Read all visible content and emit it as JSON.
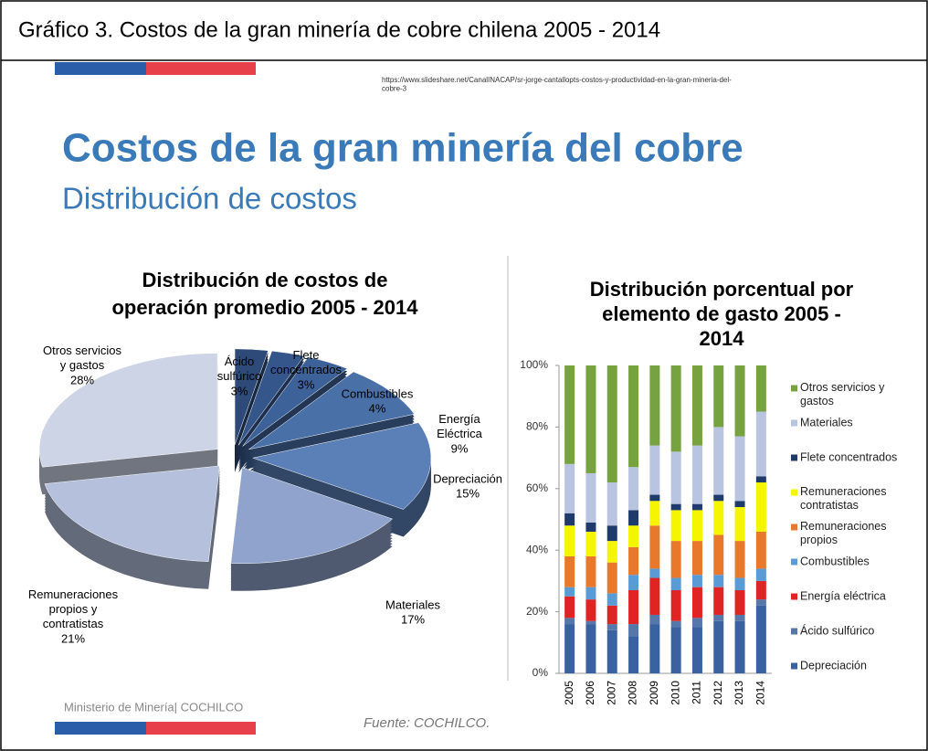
{
  "caption": "Gráfico 3. Costos de la gran minería de cobre chilena 2005 - 2014",
  "slide": {
    "url": "https://www.slideshare.net/CanalINACAP/sr-jorge-cantallopts-costos-y-productividad-en-la-gran-mineria-del-\ncobre-3",
    "title": "Costos de la gran minería del cobre",
    "subtitle": "Distribución de costos",
    "footer": "Ministerio de Minería| COCHILCO",
    "source": "Fuente: COCHILCO."
  },
  "chart_data": [
    {
      "type": "pie",
      "title": "Distribución de costos de\noperación promedio 2005 - 2014",
      "labels": [
        "Ácido\nsulfúrico",
        "Flete\nconcentrados",
        "Combustibles",
        "Energía\nEléctrica",
        "Depreciación",
        "Materiales",
        "Remuneraciones\npropios y\ncontratistas",
        "Otros servicios\ny gastos"
      ],
      "values": [
        3,
        3,
        4,
        9,
        15,
        17,
        21,
        28
      ],
      "value_labels": [
        "3%",
        "3%",
        "4%",
        "9%",
        "15%",
        "17%",
        "21%",
        "28%"
      ],
      "colors": [
        "#2d4a78",
        "#34568a",
        "#3d6299",
        "#4a70a8",
        "#5b80b8",
        "#8fa3cc",
        "#b4c0dc",
        "#cdd4e6"
      ]
    },
    {
      "type": "stacked_bar",
      "title": "Distribución porcentual por\nelemento de gasto 2005 -\n2014",
      "categories": [
        "2005",
        "2006",
        "2007",
        "2008",
        "2009",
        "2010",
        "2011",
        "2012",
        "2013",
        "2014"
      ],
      "ylim": [
        0,
        100
      ],
      "yticks": [
        {
          "value": 0,
          "label": "0%"
        },
        {
          "value": 20,
          "label": "20%"
        },
        {
          "value": 40,
          "label": "40%"
        },
        {
          "value": 60,
          "label": "60%"
        },
        {
          "value": 80,
          "label": "80%"
        },
        {
          "value": 100,
          "label": "100%"
        }
      ],
      "series": [
        {
          "name": "Depreciación",
          "color": "#3b62a0",
          "values": [
            16,
            16,
            14,
            12,
            16,
            15,
            15,
            17,
            17,
            22
          ]
        },
        {
          "name": "Ácido sulfúrico",
          "color": "#5577aa",
          "values": [
            2,
            1,
            2,
            4,
            3,
            2,
            3,
            2,
            2,
            2
          ]
        },
        {
          "name": "Energía eléctrica",
          "color": "#e02424",
          "values": [
            7,
            7,
            6,
            11,
            12,
            10,
            10,
            9,
            8,
            6
          ]
        },
        {
          "name": "Combustibles",
          "color": "#5b9bd5",
          "values": [
            3,
            4,
            4,
            5,
            3,
            4,
            4,
            4,
            4,
            4
          ]
        },
        {
          "name": "Remuneraciones\npropios",
          "color": "#e8792c",
          "values": [
            10,
            10,
            10,
            9,
            14,
            12,
            11,
            13,
            12,
            12
          ]
        },
        {
          "name": "Remuneraciones\ncontratistas",
          "color": "#f5f500",
          "values": [
            10,
            8,
            7,
            7,
            8,
            10,
            10,
            11,
            11,
            16
          ]
        },
        {
          "name": "Flete concentrados",
          "color": "#1f3b6b",
          "values": [
            4,
            3,
            5,
            5,
            2,
            2,
            2,
            2,
            2,
            2
          ]
        },
        {
          "name": "Materiales",
          "color": "#b8c4e0",
          "values": [
            16,
            16,
            14,
            14,
            16,
            17,
            19,
            22,
            21,
            21
          ]
        },
        {
          "name": "Otros servicios y\ngastos",
          "color": "#76a340",
          "values": [
            32,
            35,
            38,
            33,
            26,
            28,
            26,
            20,
            23,
            15
          ]
        }
      ]
    }
  ]
}
